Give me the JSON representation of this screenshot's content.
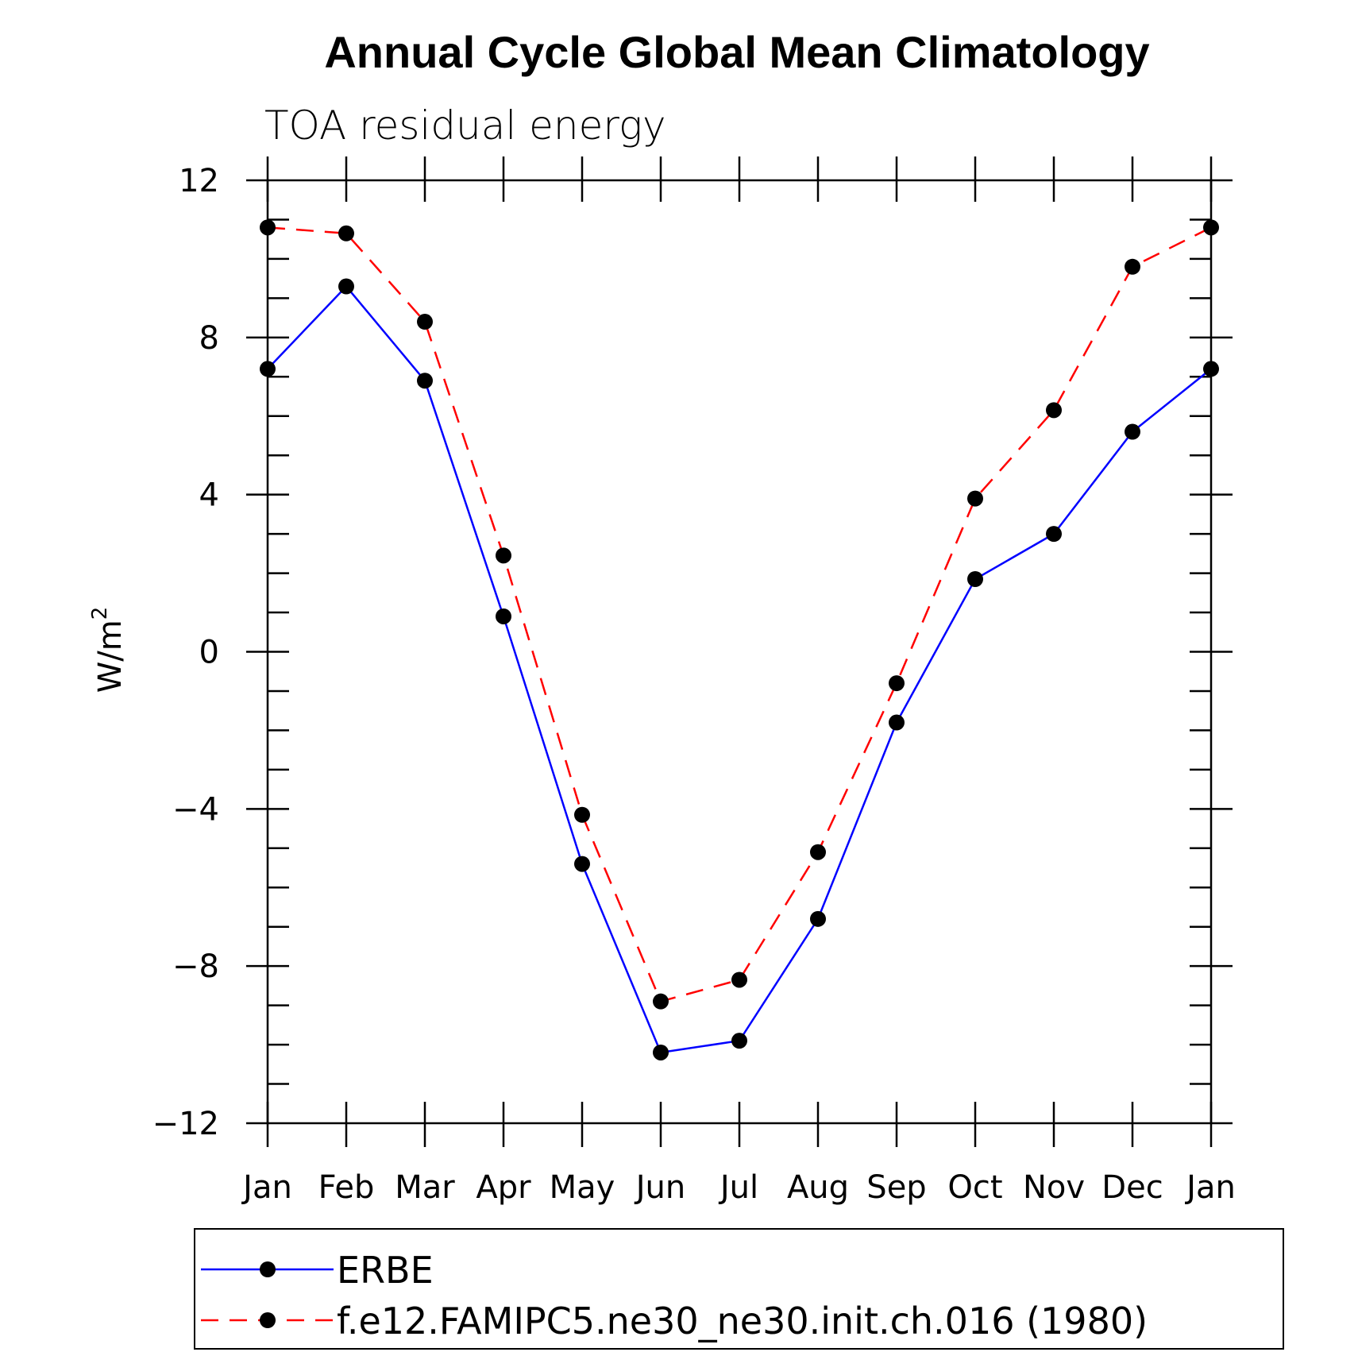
{
  "chart_data": {
    "type": "line",
    "title": "Annual Cycle Global Mean Climatology",
    "subtitle": "TOA residual energy",
    "ylabel_base": "W/m",
    "ylabel_sup": "2",
    "categories": [
      "Jan",
      "Feb",
      "Mar",
      "Apr",
      "May",
      "Jun",
      "Jul",
      "Aug",
      "Sep",
      "Oct",
      "Nov",
      "Dec",
      "Jan"
    ],
    "ylim": [
      -12,
      12
    ],
    "yticks": [
      12,
      8,
      4,
      0,
      -4,
      -8,
      -12
    ],
    "ytick_labels": [
      "12",
      "8",
      "4",
      "0",
      "−4",
      "−8",
      "−12"
    ],
    "series": [
      {
        "name": "ERBE",
        "color": "#0000ff",
        "dash": "solid",
        "values": [
          7.2,
          9.3,
          6.9,
          0.9,
          -5.4,
          -10.2,
          -9.9,
          -6.8,
          -1.8,
          1.85,
          3.0,
          5.6,
          7.2
        ]
      },
      {
        "name": "f.e12.FAMIPC5.ne30_ne30.init.ch.016 (1980)",
        "color": "#ff0000",
        "dash": "dashed",
        "values": [
          10.8,
          10.65,
          8.4,
          2.45,
          -4.15,
          -8.9,
          -8.35,
          -5.1,
          -0.8,
          3.9,
          6.15,
          9.8,
          10.8
        ]
      }
    ],
    "marker_color": "#000000",
    "grid": false,
    "legend_position": "bottom"
  }
}
